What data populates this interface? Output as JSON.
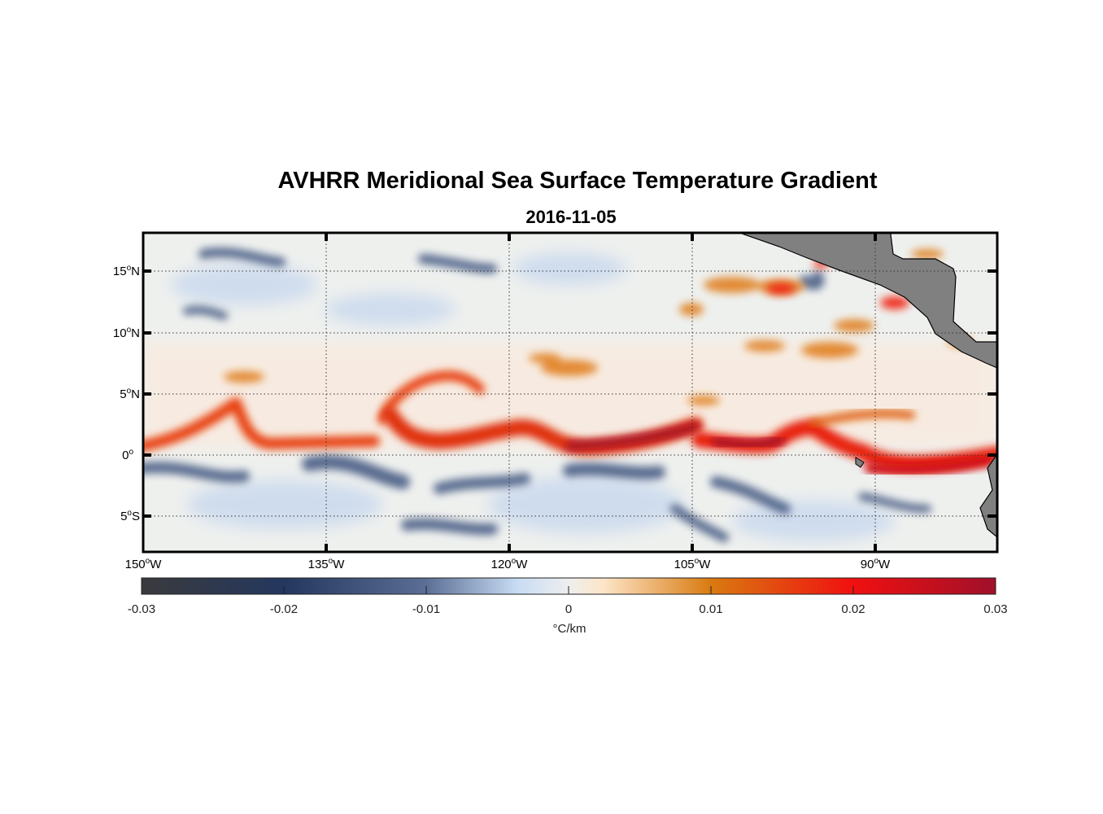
{
  "chart_data": {
    "type": "heatmap",
    "title": "AVHRR Meridional Sea Surface Temperature Gradient",
    "subtitle": "2016-11-05",
    "lon_range": [
      -150,
      -80
    ],
    "lat_range": [
      -8,
      18
    ],
    "xticks": [
      {
        "value": -150,
        "num": "150",
        "hemi": "W"
      },
      {
        "value": -135,
        "num": "135",
        "hemi": "W"
      },
      {
        "value": -120,
        "num": "120",
        "hemi": "W"
      },
      {
        "value": -105,
        "num": "105",
        "hemi": "W"
      },
      {
        "value": -90,
        "num": "90",
        "hemi": "W"
      }
    ],
    "yticks": [
      {
        "value": 15,
        "num": "15",
        "hemi": "N"
      },
      {
        "value": 10,
        "num": "10",
        "hemi": "N"
      },
      {
        "value": 5,
        "num": "5",
        "hemi": "N"
      },
      {
        "value": 0,
        "num": "0",
        "hemi": ""
      },
      {
        "value": -5,
        "num": "5",
        "hemi": "S"
      }
    ],
    "degree_symbol": "o",
    "grid": true,
    "colorbar": {
      "range": [
        -0.03,
        0.03
      ],
      "ticks": [
        "-0.03",
        "-0.02",
        "-0.01",
        "0",
        "0.01",
        "0.02",
        "0.03"
      ],
      "label": "°C/km",
      "colors": [
        "#3a3a3c",
        "#24375f",
        "#5b6e95",
        "#c8dcf4",
        "#eeeeee",
        "#fde6c8",
        "#d97a10",
        "#f01010",
        "#a0102a"
      ]
    }
  }
}
